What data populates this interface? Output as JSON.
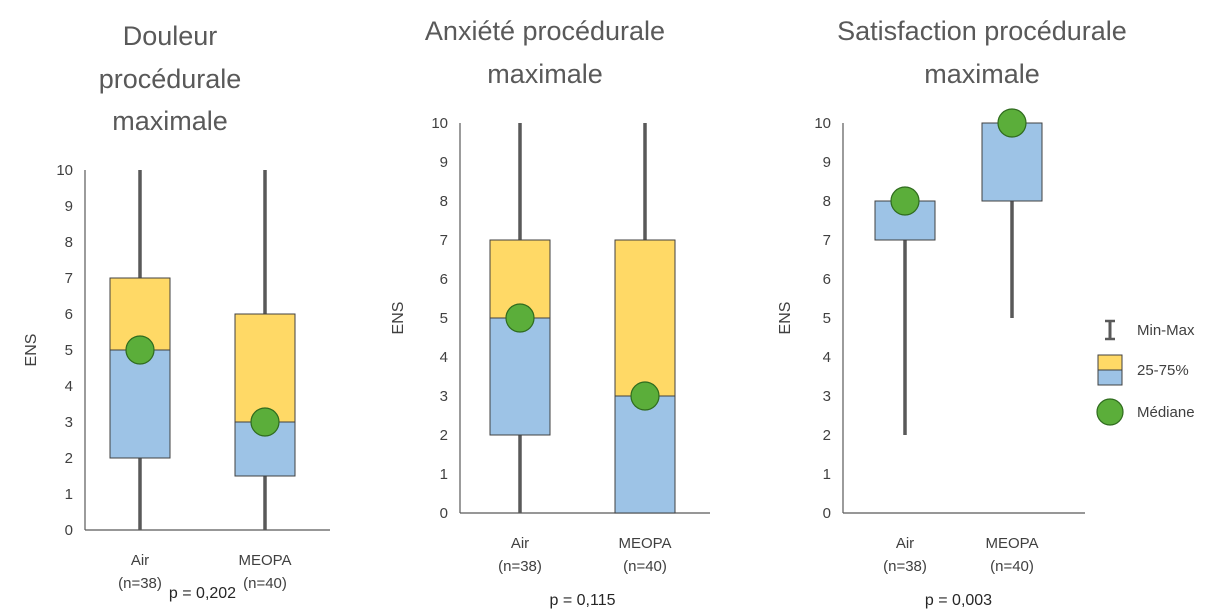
{
  "chart_data": [
    {
      "type": "box",
      "title_lines": [
        "Douleur",
        "procédurale",
        "maximale"
      ],
      "ylabel": "ENS",
      "ylim": [
        0,
        10
      ],
      "yticks": [
        "0",
        "1",
        "2",
        "3",
        "4",
        "5",
        "6",
        "7",
        "8",
        "9",
        "10"
      ],
      "categories": [
        {
          "label": "Air",
          "n": "(n=38)",
          "min": 0,
          "q1": 2,
          "median": 5,
          "q3": 7,
          "max": 10
        },
        {
          "label": "MEOPA",
          "n": "(n=40)",
          "min": 0,
          "q1": 1.5,
          "median": 3,
          "q3": 6,
          "max": 10
        }
      ],
      "pvalue": "p = 0,202"
    },
    {
      "type": "box",
      "title_lines": [
        "Anxiété procédurale",
        "maximale"
      ],
      "ylabel": "ENS",
      "ylim": [
        0,
        10
      ],
      "yticks": [
        "0",
        "1",
        "2",
        "3",
        "4",
        "5",
        "6",
        "7",
        "8",
        "9",
        "10"
      ],
      "categories": [
        {
          "label": "Air",
          "n": "(n=38)",
          "min": 0,
          "q1": 2,
          "median": 5,
          "q3": 7,
          "max": 10
        },
        {
          "label": "MEOPA",
          "n": "(n=40)",
          "min": 0,
          "q1": 0,
          "median": 3,
          "q3": 7,
          "max": 10
        }
      ],
      "pvalue": "p = 0,115"
    },
    {
      "type": "box",
      "title_lines": [
        "Satisfaction procédurale",
        "maximale"
      ],
      "ylabel": "ENS",
      "ylim": [
        0,
        10
      ],
      "yticks": [
        "0",
        "1",
        "2",
        "3",
        "4",
        "5",
        "6",
        "7",
        "8",
        "9",
        "10"
      ],
      "categories": [
        {
          "label": "Air",
          "n": "(n=38)",
          "min": 2,
          "q1": 7,
          "median": 8,
          "q3": 8,
          "max": 8
        },
        {
          "label": "MEOPA",
          "n": "(n=40)",
          "min": 5,
          "q1": 8,
          "median": 10,
          "q3": 10,
          "max": 10
        }
      ],
      "pvalue": "p = 0,003"
    }
  ],
  "legend": {
    "items": [
      {
        "label": "Min-Max",
        "icon": "min-max-icon"
      },
      {
        "label": "25-75%",
        "icon": "quartile-box-icon"
      },
      {
        "label": "Médiane",
        "icon": "median-dot-icon"
      }
    ]
  },
  "colors": {
    "upper_box": "#FFD966",
    "lower_box": "#9DC3E6",
    "median": "#5BAE3A",
    "median_stroke": "#2F6B1E",
    "whisker": "#595959",
    "axis": "#595959",
    "box_stroke": "#404040"
  }
}
